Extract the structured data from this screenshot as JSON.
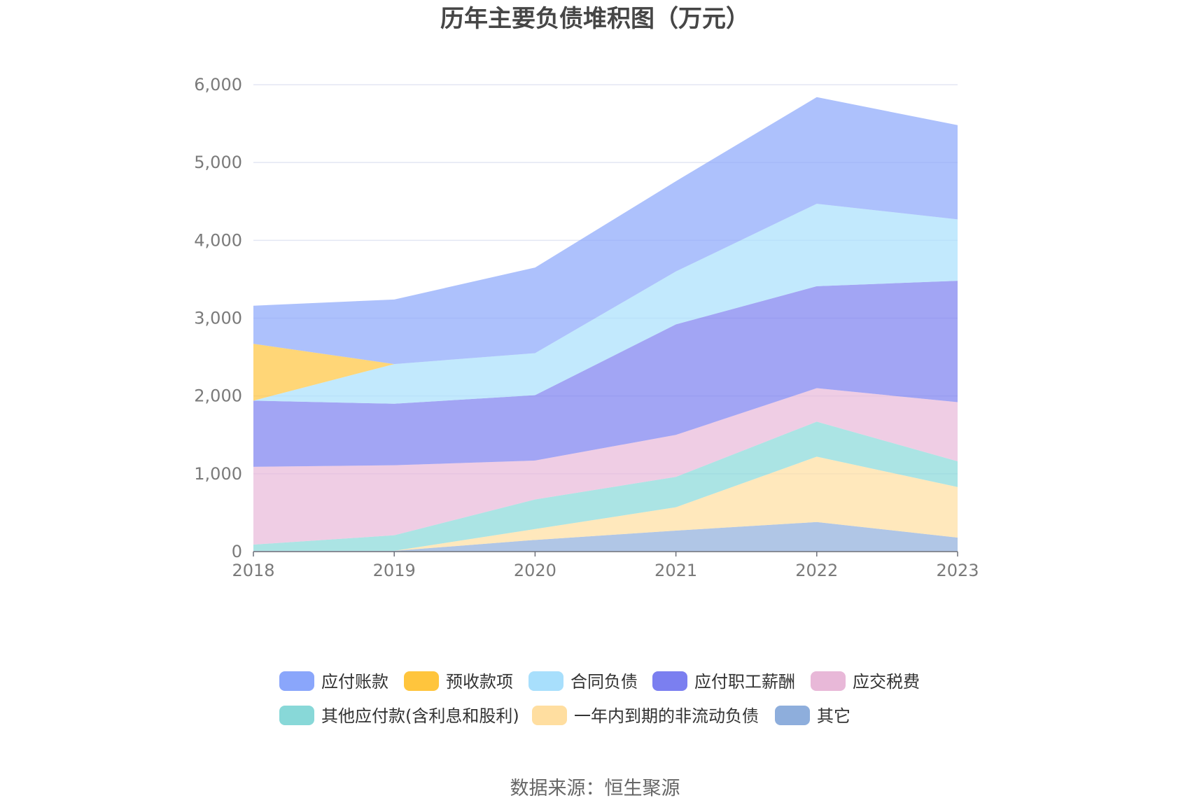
{
  "chart_data": {
    "type": "area",
    "stacked": true,
    "title": "历年主要负债堆积图（万元）",
    "categories": [
      "2018",
      "2019",
      "2020",
      "2021",
      "2022",
      "2023"
    ],
    "ylim": [
      0,
      6000
    ],
    "yticks": [
      0,
      1000,
      2000,
      3000,
      4000,
      5000,
      6000
    ],
    "ytick_labels": [
      "0",
      "1,000",
      "2,000",
      "3,000",
      "4,000",
      "5,000",
      "6,000"
    ],
    "grid": true,
    "legend_position": "bottom",
    "series": [
      {
        "name": "其它",
        "color": "#8eaedc",
        "values": [
          10,
          10,
          150,
          270,
          380,
          180
        ]
      },
      {
        "name": "一年内到期的非流动负债",
        "color": "#ffdea0",
        "values": [
          0,
          0,
          140,
          300,
          840,
          650
        ]
      },
      {
        "name": "其他应付款(含利息和股利)",
        "color": "#88d8d8",
        "values": [
          80,
          200,
          380,
          390,
          450,
          330
        ]
      },
      {
        "name": "应交税费",
        "color": "#e8b8d8",
        "values": [
          1000,
          900,
          500,
          540,
          430,
          760
        ]
      },
      {
        "name": "应付职工薪酬",
        "color": "#7b7ff0",
        "values": [
          850,
          790,
          840,
          1420,
          1310,
          1560
        ]
      },
      {
        "name": "合同负债",
        "color": "#a8dffc",
        "values": [
          0,
          510,
          540,
          680,
          1060,
          790
        ]
      },
      {
        "name": "预收款项",
        "color": "#ffc53d",
        "values": [
          730,
          0,
          0,
          0,
          0,
          0
        ]
      },
      {
        "name": "应付账款",
        "color": "#8aa6fb",
        "values": [
          490,
          830,
          1100,
          1160,
          1370,
          1210
        ]
      }
    ],
    "legend_order": [
      "应付账款",
      "预收款项",
      "合同负债",
      "应付职工薪酬",
      "应交税费",
      "其他应付款(含利息和股利)",
      "一年内到期的非流动负债",
      "其它"
    ]
  },
  "source_label": "数据来源：恒生聚源"
}
